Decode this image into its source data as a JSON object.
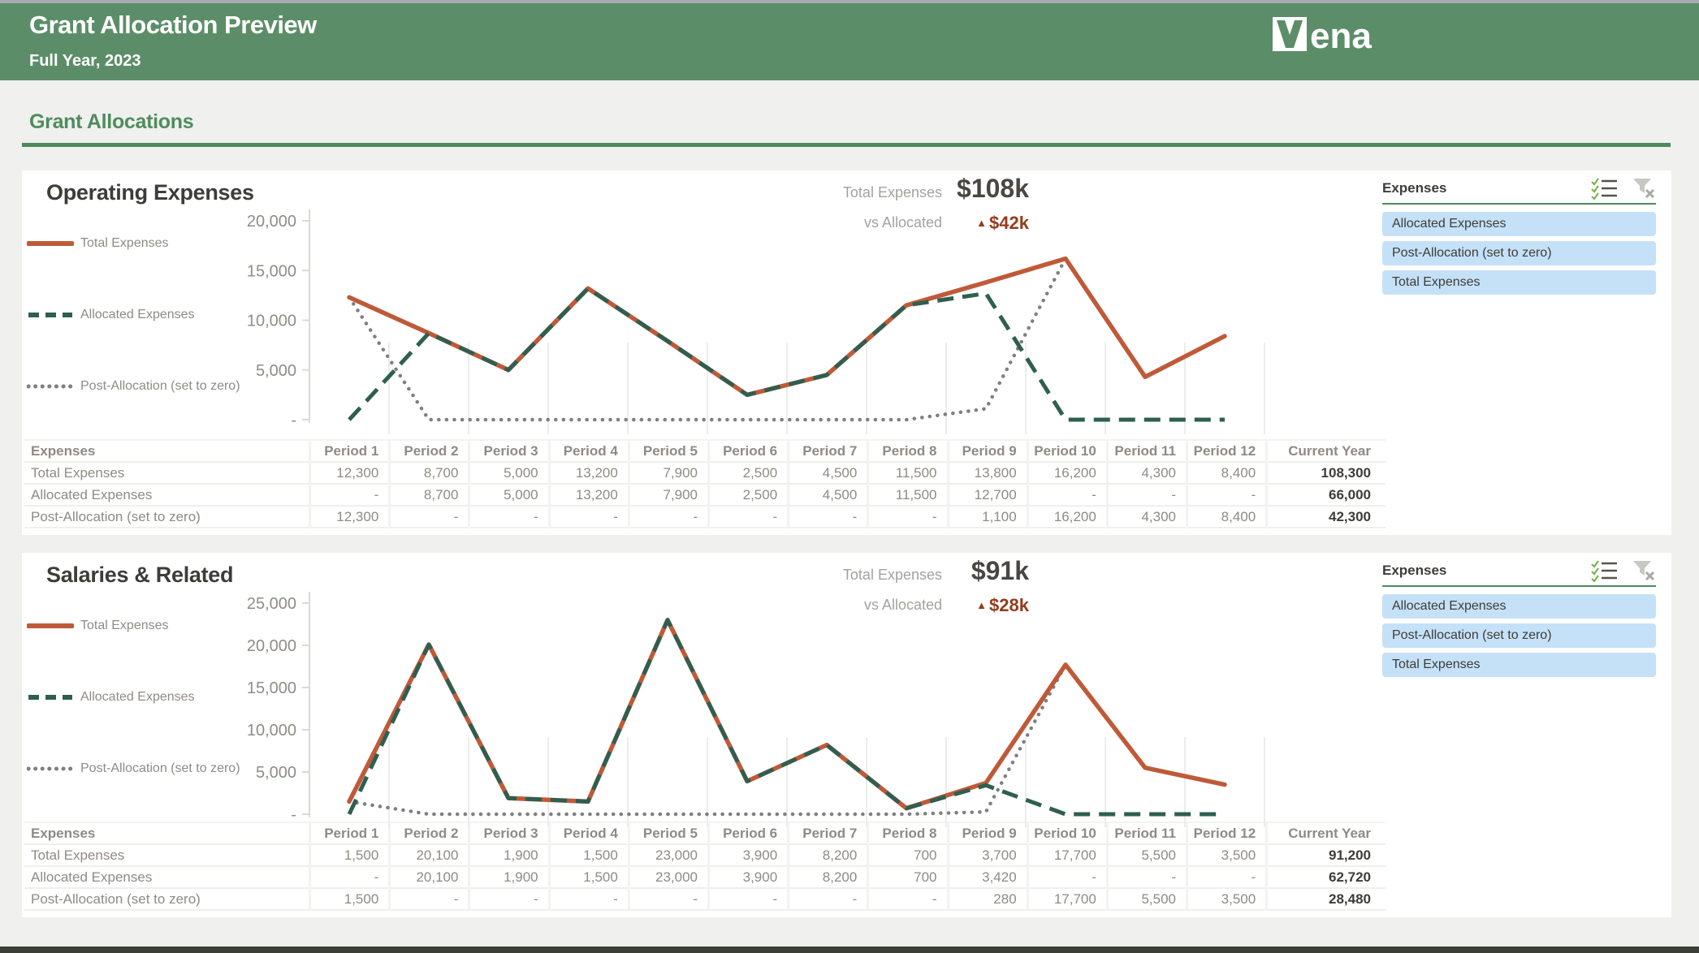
{
  "header": {
    "title": "Grant Allocation Preview",
    "subtitle": "Full Year, 2023",
    "logo_text": "ena"
  },
  "section_heading": "Grant Allocations",
  "filter_panel": {
    "title": "Expenses",
    "icons": [
      "multi-select-checklist",
      "clear-filter"
    ],
    "pills": [
      "Allocated Expenses",
      "Post-Allocation (set to zero)",
      "Total Expenses"
    ]
  },
  "colors": {
    "banner_green": "#5b8e68",
    "heading_green": "#4f8c5d",
    "accent_orange": "#bf5a39",
    "accent_dark_green": "#2e5f50",
    "accent_gray": "#7f7f7f",
    "kpi_delta_red": "#943c1c",
    "pill_blue": "#c5e1f7"
  },
  "sections": [
    {
      "title": "Operating Expenses",
      "kpi": {
        "metric_label": "Total Expenses",
        "metric_value": "$108k",
        "compare_label": "vs Allocated",
        "compare_delta": "$42k",
        "delta_direction": "up"
      },
      "table": {
        "header_label": "Expenses",
        "columns": [
          "Period 1",
          "Period 2",
          "Period 3",
          "Period 4",
          "Period 5",
          "Period 6",
          "Period 7",
          "Period 8",
          "Period 9",
          "Period 10",
          "Period 11",
          "Period 12",
          "Current Year"
        ],
        "rows": [
          {
            "label": "Total Expenses",
            "values": [
              "12,300",
              "8,700",
              "5,000",
              "13,200",
              "7,900",
              "2,500",
              "4,500",
              "11,500",
              "13,800",
              "16,200",
              "4,300",
              "8,400"
            ],
            "total": "108,300"
          },
          {
            "label": "Allocated Expenses",
            "values": [
              "-",
              "8,700",
              "5,000",
              "13,200",
              "7,900",
              "2,500",
              "4,500",
              "11,500",
              "12,700",
              "-",
              "-",
              "-"
            ],
            "total": "66,000"
          },
          {
            "label": "Post-Allocation (set to zero)",
            "values": [
              "12,300",
              "-",
              "-",
              "-",
              "-",
              "-",
              "-",
              "-",
              "1,100",
              "16,200",
              "4,300",
              "8,400"
            ],
            "total": "42,300"
          }
        ]
      }
    },
    {
      "title": "Salaries & Related",
      "kpi": {
        "metric_label": "Total Expenses",
        "metric_value": "$91k",
        "compare_label": "vs Allocated",
        "compare_delta": "$28k",
        "delta_direction": "up"
      },
      "table": {
        "header_label": "Expenses",
        "columns": [
          "Period 1",
          "Period 2",
          "Period 3",
          "Period 4",
          "Period 5",
          "Period 6",
          "Period 7",
          "Period 8",
          "Period 9",
          "Period 10",
          "Period 11",
          "Period 12",
          "Current Year"
        ],
        "rows": [
          {
            "label": "Total Expenses",
            "values": [
              "1,500",
              "20,100",
              "1,900",
              "1,500",
              "23,000",
              "3,900",
              "8,200",
              "700",
              "3,700",
              "17,700",
              "5,500",
              "3,500"
            ],
            "total": "91,200"
          },
          {
            "label": "Allocated Expenses",
            "values": [
              "-",
              "20,100",
              "1,900",
              "1,500",
              "23,000",
              "3,900",
              "8,200",
              "700",
              "3,420",
              "-",
              "-",
              "-"
            ],
            "total": "62,720"
          },
          {
            "label": "Post-Allocation (set to zero)",
            "values": [
              "1,500",
              "-",
              "-",
              "-",
              "-",
              "-",
              "-",
              "-",
              "280",
              "17,700",
              "5,500",
              "3,500"
            ],
            "total": "28,480"
          }
        ]
      }
    }
  ],
  "chart_data": [
    {
      "type": "line",
      "title": "Operating Expenses",
      "categories": [
        "Period 1",
        "Period 2",
        "Period 3",
        "Period 4",
        "Period 5",
        "Period 6",
        "Period 7",
        "Period 8",
        "Period 9",
        "Period 10",
        "Period 11",
        "Period 12"
      ],
      "series": [
        {
          "name": "Total Expenses",
          "style": "solid",
          "color": "#bf5a39",
          "values": [
            12300,
            8700,
            5000,
            13200,
            7900,
            2500,
            4500,
            11500,
            13800,
            16200,
            4300,
            8400
          ]
        },
        {
          "name": "Allocated Expenses",
          "style": "dashed",
          "color": "#2e5f50",
          "values": [
            0,
            8700,
            5000,
            13200,
            7900,
            2500,
            4500,
            11500,
            12700,
            0,
            0,
            0
          ]
        },
        {
          "name": "Post-Allocation (set to zero)",
          "style": "dotted",
          "color": "#7f7f7f",
          "values": [
            12300,
            0,
            0,
            0,
            0,
            0,
            0,
            0,
            1100,
            16200,
            4300,
            8400
          ]
        }
      ],
      "xlabel": "",
      "ylabel": "",
      "ylim": [
        0,
        20000
      ],
      "ytick_values": [
        20000,
        15000,
        10000,
        5000,
        0
      ],
      "ytick_labels": [
        "20,000",
        "15,000",
        "10,000",
        "5,000",
        "-"
      ],
      "legend_position": "left",
      "grid": "partial-vertical"
    },
    {
      "type": "line",
      "title": "Salaries & Related",
      "categories": [
        "Period 1",
        "Period 2",
        "Period 3",
        "Period 4",
        "Period 5",
        "Period 6",
        "Period 7",
        "Period 8",
        "Period 9",
        "Period 10",
        "Period 11",
        "Period 12"
      ],
      "series": [
        {
          "name": "Total Expenses",
          "style": "solid",
          "color": "#bf5a39",
          "values": [
            1500,
            20100,
            1900,
            1500,
            23000,
            3900,
            8200,
            700,
            3700,
            17700,
            5500,
            3500
          ]
        },
        {
          "name": "Allocated Expenses",
          "style": "dashed",
          "color": "#2e5f50",
          "values": [
            0,
            20100,
            1900,
            1500,
            23000,
            3900,
            8200,
            700,
            3420,
            0,
            0,
            0
          ]
        },
        {
          "name": "Post-Allocation (set to zero)",
          "style": "dotted",
          "color": "#7f7f7f",
          "values": [
            1500,
            0,
            0,
            0,
            0,
            0,
            0,
            0,
            280,
            17700,
            5500,
            3500
          ]
        }
      ],
      "xlabel": "",
      "ylabel": "",
      "ylim": [
        0,
        25000
      ],
      "ytick_values": [
        25000,
        20000,
        15000,
        10000,
        5000,
        0
      ],
      "ytick_labels": [
        "25,000",
        "20,000",
        "15,000",
        "10,000",
        "5,000",
        "-"
      ],
      "legend_position": "left",
      "grid": "partial-vertical"
    }
  ]
}
